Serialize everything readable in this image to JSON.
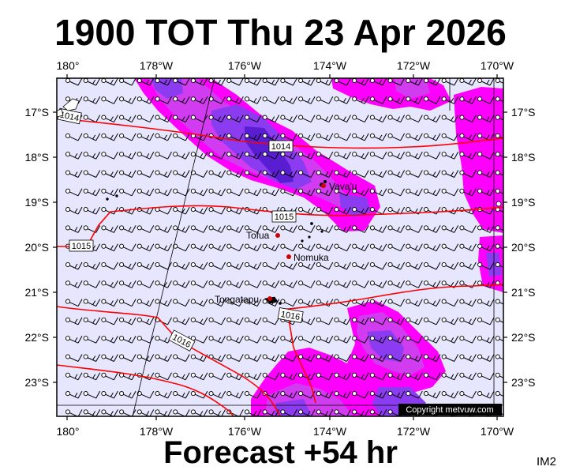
{
  "title": "1900 TOT Thu 23 Apr 2026",
  "footer": "Forecast +54 hr",
  "badge": "IM2",
  "copyright": "Copyright metvuw.com",
  "colors": {
    "background": "#e6e6ff",
    "rain_light": "#ff00ff",
    "rain_medium": "#d23cf0",
    "rain_heavy": "#8c3cf0",
    "rain_extreme": "#5a1ed2",
    "isobar": "#ff0000",
    "wind_barb": "#000000",
    "town_marker": "#d00000"
  },
  "axes": {
    "lon_ticks": [
      "180°",
      "178°W",
      "176°W",
      "174°W",
      "172°W",
      "170°W"
    ],
    "lat_ticks": [
      "17°S",
      "18°S",
      "19°S",
      "20°S",
      "21°S",
      "22°S",
      "23°S"
    ]
  },
  "isobars": [
    {
      "label": "1014"
    },
    {
      "label": "1014"
    },
    {
      "label": "1015"
    },
    {
      "label": "1015"
    },
    {
      "label": "1016"
    },
    {
      "label": "1016"
    }
  ],
  "places": [
    {
      "name": "Vava'u"
    },
    {
      "name": "Tofua"
    },
    {
      "name": "Nomuka"
    },
    {
      "name": "Tongatapu"
    }
  ],
  "wind_barbs": {
    "symbol": "wind-barb",
    "direction": "easterly",
    "typical_speed_kt": 15
  }
}
